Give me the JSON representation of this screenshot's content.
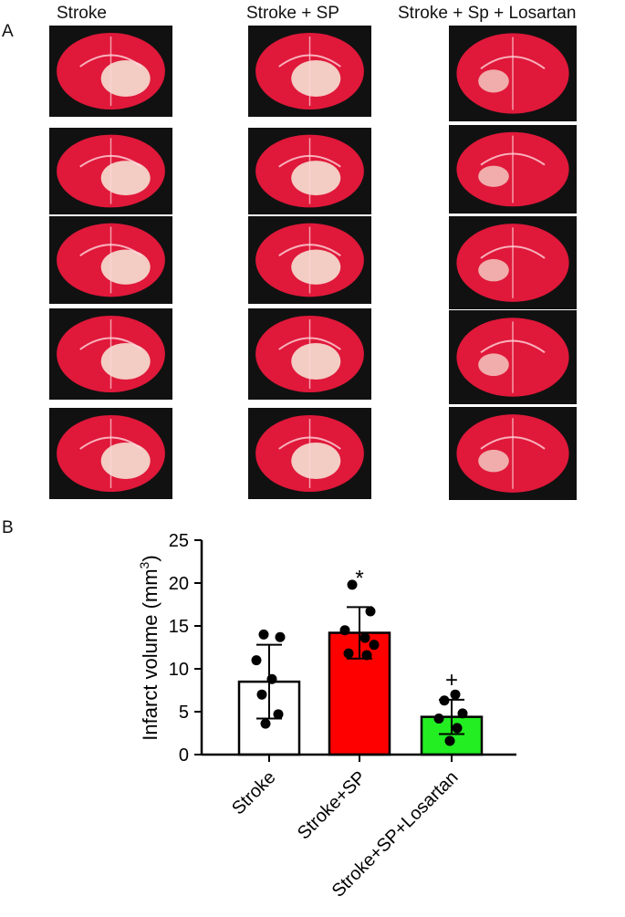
{
  "panel_a": {
    "letter": "A",
    "columns": [
      {
        "title": "Stroke",
        "slices": 5
      },
      {
        "title": "Stroke + SP",
        "slices": 5
      },
      {
        "title": "Stroke + Sp + Losartan",
        "slices": 5
      }
    ]
  },
  "panel_b": {
    "letter": "B"
  },
  "colors": {
    "stroke_bar": "#ffffff",
    "sp_bar": "#ff0000",
    "losartan_bar": "#22ee22",
    "tissue_red": "#e0183a",
    "tissue_pale": "#f6ecdc"
  },
  "chart_data": {
    "type": "bar",
    "title": "",
    "xlabel": "",
    "ylabel": "Infarct volume (mm3)",
    "ylabel_main": "Infarct volume (mm",
    "ylabel_sup": "3",
    "ylabel_end": ")",
    "ylim": [
      0,
      25
    ],
    "yticks": [
      0,
      5,
      10,
      15,
      20,
      25
    ],
    "categories": [
      "Stroke",
      "Stroke+SP",
      "Stroke+SP+Losartan"
    ],
    "values": [
      8.5,
      14.2,
      4.4
    ],
    "errors": [
      4.3,
      3.0,
      2.0
    ],
    "bar_colors": [
      "#ffffff",
      "#ff0000",
      "#22ee22"
    ],
    "significance": [
      "",
      "*",
      "+"
    ],
    "points": [
      [
        14.0,
        13.7,
        11.0,
        8.8,
        7.0,
        4.7,
        3.6
      ],
      [
        19.8,
        16.7,
        14.5,
        13.6,
        12.8,
        11.8,
        11.6
      ],
      [
        7.0,
        6.3,
        4.8,
        4.2,
        3.1,
        1.6
      ]
    ]
  }
}
